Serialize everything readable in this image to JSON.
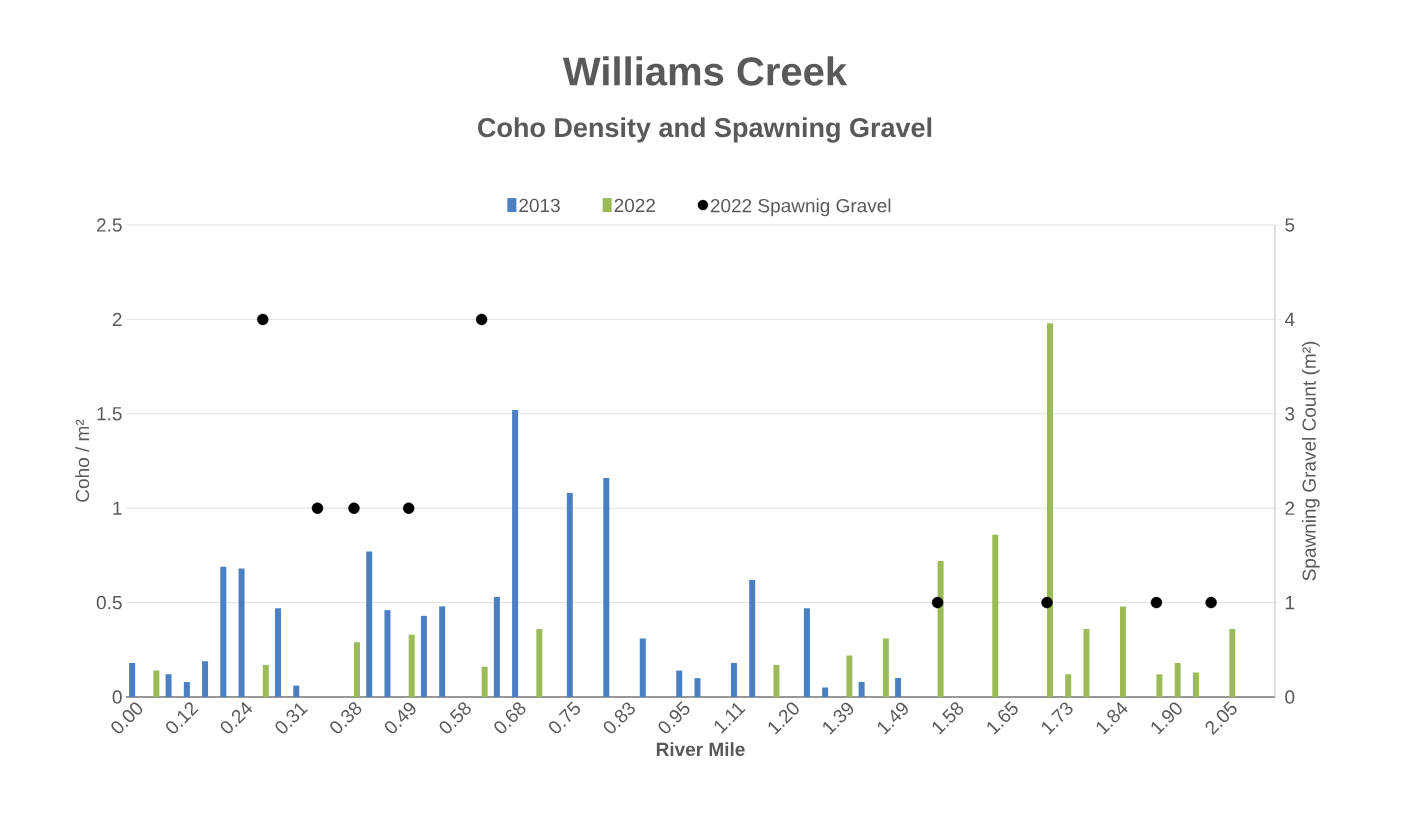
{
  "chart_data": {
    "type": "bar",
    "title": "Williams Creek",
    "subtitle": "Coho Density and Spawning Gravel",
    "xlabel": "River Mile",
    "ylabel": "Coho / m²",
    "y2label": "Spawning Gravel Count (m²)",
    "categories": [
      "0.00",
      null,
      null,
      "0.12",
      null,
      null,
      "0.24",
      null,
      null,
      "0.31",
      null,
      null,
      "0.38",
      null,
      null,
      "0.49",
      null,
      null,
      "0.58",
      null,
      null,
      "0.68",
      null,
      null,
      "0.75",
      null,
      null,
      "0.83",
      null,
      null,
      "0.95",
      null,
      null,
      "1.11",
      null,
      null,
      "1.20",
      null,
      null,
      "1.39",
      null,
      null,
      "1.49",
      null,
      null,
      "1.58",
      null,
      null,
      "1.65",
      null,
      null,
      "1.73",
      null,
      null,
      "1.84",
      null,
      null,
      "1.90",
      null,
      null,
      "2.05",
      null,
      null
    ],
    "series": [
      {
        "name": "2013",
        "color": "#4a7fc1",
        "values": [
          0.18,
          null,
          0.12,
          0.08,
          0.19,
          0.69,
          0.68,
          null,
          0.47,
          0.06,
          null,
          null,
          null,
          0.77,
          0.46,
          null,
          0.43,
          0.48,
          null,
          null,
          0.53,
          1.52,
          null,
          null,
          1.08,
          null,
          1.16,
          null,
          0.31,
          null,
          0.14,
          0.1,
          null,
          0.18,
          0.62,
          null,
          null,
          0.47,
          0.05,
          null,
          0.08,
          null,
          0.1,
          null,
          null,
          null,
          null,
          null,
          null,
          null,
          null,
          null,
          null,
          null,
          null,
          null,
          null,
          null,
          null,
          null,
          null,
          null,
          null
        ]
      },
      {
        "name": "2022",
        "color": "#9bbb59",
        "values": [
          null,
          0.14,
          null,
          null,
          null,
          null,
          null,
          0.17,
          null,
          null,
          null,
          null,
          0.29,
          null,
          null,
          0.33,
          null,
          null,
          null,
          0.16,
          null,
          null,
          0.36,
          null,
          null,
          null,
          null,
          null,
          null,
          null,
          null,
          null,
          null,
          null,
          null,
          0.17,
          null,
          null,
          null,
          0.22,
          null,
          0.31,
          null,
          null,
          0.72,
          null,
          null,
          0.86,
          null,
          null,
          1.98,
          0.12,
          0.36,
          null,
          0.48,
          null,
          0.12,
          0.18,
          0.13,
          null,
          0.36,
          null,
          null
        ]
      },
      {
        "name": "2022 Spawnig Gravel",
        "type": "scatter",
        "axis": "y2",
        "color": "#000000",
        "marker": "circle",
        "values": [
          null,
          null,
          null,
          null,
          null,
          null,
          null,
          4,
          null,
          null,
          2,
          null,
          2,
          null,
          null,
          2,
          null,
          null,
          null,
          4,
          null,
          null,
          null,
          null,
          null,
          null,
          null,
          null,
          null,
          null,
          null,
          null,
          null,
          null,
          null,
          null,
          null,
          null,
          null,
          null,
          null,
          null,
          null,
          null,
          1,
          null,
          null,
          null,
          null,
          null,
          1,
          null,
          null,
          null,
          null,
          null,
          1,
          null,
          null,
          1,
          null,
          null,
          null
        ]
      }
    ],
    "ylim": [
      0,
      2.5
    ],
    "yticks": [
      0,
      0.5,
      1,
      1.5,
      2,
      2.5
    ],
    "y2lim": [
      0,
      5
    ],
    "y2ticks": [
      0,
      1,
      2,
      3,
      4,
      5
    ],
    "grid": "y",
    "legend": "top"
  }
}
